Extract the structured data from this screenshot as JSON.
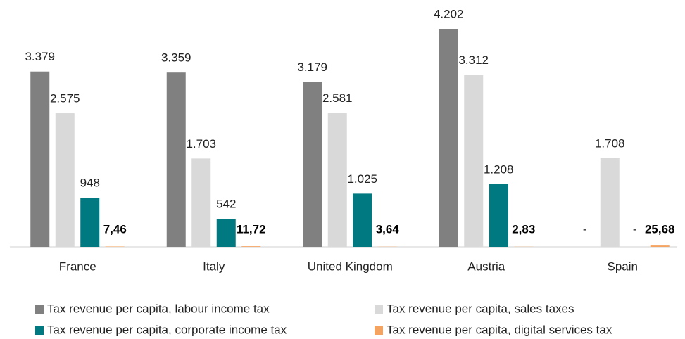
{
  "chart_data": {
    "type": "bar",
    "categories": [
      "France",
      "Italy",
      "United Kingdom",
      "Austria",
      "Spain"
    ],
    "series": [
      {
        "name": "Tax revenue per capita, labour income tax",
        "color": "#808080",
        "values": [
          3379,
          3359,
          3179,
          4202,
          null
        ],
        "value_labels": [
          "3.379",
          "3.359",
          "3.179",
          "4.202",
          "-"
        ]
      },
      {
        "name": "Tax revenue per capita, sales taxes",
        "color": "#d9d9d9",
        "values": [
          2575,
          1703,
          2581,
          3312,
          1708
        ],
        "value_labels": [
          "2.575",
          "1.703",
          "2.581",
          "3.312",
          "1.708"
        ]
      },
      {
        "name": "Tax revenue per capita, corporate income tax",
        "color": "#007a80",
        "values": [
          948,
          542,
          1025,
          1208,
          null
        ],
        "value_labels": [
          "948",
          "542",
          "1.025",
          "1.208",
          "-"
        ]
      },
      {
        "name": "Tax revenue per capita, digital services tax",
        "color": "#f4a460",
        "values": [
          7.46,
          11.72,
          3.64,
          2.83,
          25.68
        ],
        "value_labels": [
          "7,46",
          "11,72",
          "3,64",
          "2,83",
          "25,68"
        ]
      }
    ]
  }
}
